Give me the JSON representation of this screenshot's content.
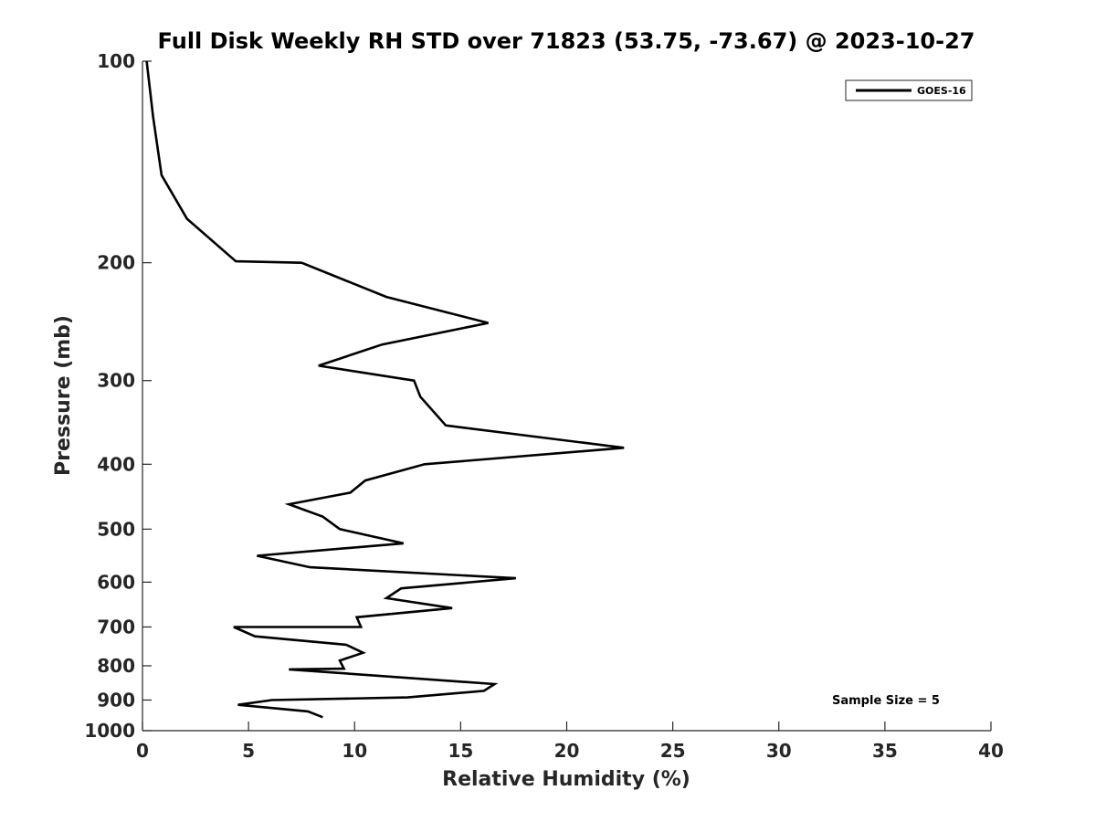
{
  "chart_data": {
    "type": "line",
    "title": "Full Disk Weekly RH STD over 71823 (53.75, -73.67) @ 2023-10-27",
    "xlabel": "Relative Humidity (%)",
    "ylabel": "Pressure (mb)",
    "xlim": [
      0,
      40
    ],
    "ylim": [
      1000,
      100
    ],
    "y_scale": "log",
    "x_ticks": [
      0,
      5,
      10,
      15,
      20,
      25,
      30,
      35,
      40
    ],
    "x_tick_labels": [
      "0",
      "5",
      "10",
      "15",
      "20",
      "25",
      "30",
      "35",
      "40"
    ],
    "y_ticks": [
      100,
      200,
      300,
      400,
      500,
      600,
      700,
      800,
      900,
      1000
    ],
    "y_tick_labels": [
      "100",
      "200",
      "300",
      "400",
      "500",
      "600",
      "700",
      "800",
      "900",
      "1000"
    ],
    "grid": false,
    "legend_position": "top-right",
    "series": [
      {
        "name": "GOES-16",
        "color": "#000000",
        "points": [
          [
            0.2,
            100
          ],
          [
            0.5,
            121
          ],
          [
            0.9,
            148
          ],
          [
            2.1,
            172
          ],
          [
            4.4,
            199
          ],
          [
            7.5,
            200
          ],
          [
            11.5,
            225
          ],
          [
            16.3,
            246
          ],
          [
            11.3,
            265
          ],
          [
            8.3,
            285
          ],
          [
            12.8,
            300
          ],
          [
            13.1,
            317
          ],
          [
            14.3,
            350
          ],
          [
            22.7,
            378
          ],
          [
            13.3,
            400
          ],
          [
            10.5,
            423
          ],
          [
            9.8,
            441
          ],
          [
            6.9,
            459
          ],
          [
            8.5,
            479
          ],
          [
            9.3,
            500
          ],
          [
            12.3,
            525
          ],
          [
            5.4,
            548
          ],
          [
            7.9,
            570
          ],
          [
            17.6,
            592
          ],
          [
            12.2,
            613
          ],
          [
            11.5,
            634
          ],
          [
            14.6,
            656
          ],
          [
            10.1,
            677
          ],
          [
            10.3,
            700
          ],
          [
            4.3,
            700
          ],
          [
            5.3,
            723
          ],
          [
            9.6,
            744
          ],
          [
            10.4,
            765
          ],
          [
            9.3,
            786
          ],
          [
            9.5,
            808
          ],
          [
            6.9,
            810
          ],
          [
            16.6,
            852
          ],
          [
            16.1,
            872
          ],
          [
            12.5,
            892
          ],
          [
            6.1,
            900
          ],
          [
            4.5,
            915
          ],
          [
            7.8,
            936
          ],
          [
            8.5,
            955
          ]
        ]
      }
    ],
    "annotations": [
      "Sample Size = 5"
    ]
  }
}
